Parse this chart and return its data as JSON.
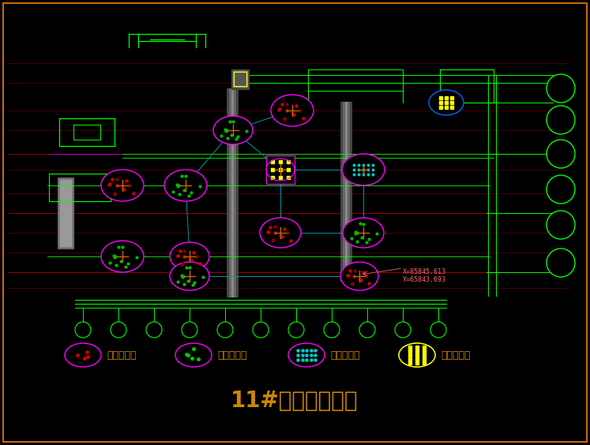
{
  "bg_color": "#000000",
  "border_color": "#cc6600",
  "title": "11#楼跳桩施工图",
  "title_color": "#cc8800",
  "title_fontsize": 20,
  "coord_text": "X=85845.613\nY=65843.693",
  "coord_color": "#ff6666",
  "legend_items": [
    {
      "label": "第一批开挖",
      "ellipse_color": "#ff00ff",
      "dot_color": "#cc0000"
    },
    {
      "label": "第二批开挖",
      "ellipse_color": "#ff00ff",
      "dot_color": "#00cc00"
    },
    {
      "label": "第三批开挖",
      "ellipse_color": "#ff00ff",
      "dot_color": "#00cccc"
    },
    {
      "label": "第四批开挖",
      "ellipse_color": "#ffff00",
      "dot_color": "#ffff00"
    }
  ]
}
